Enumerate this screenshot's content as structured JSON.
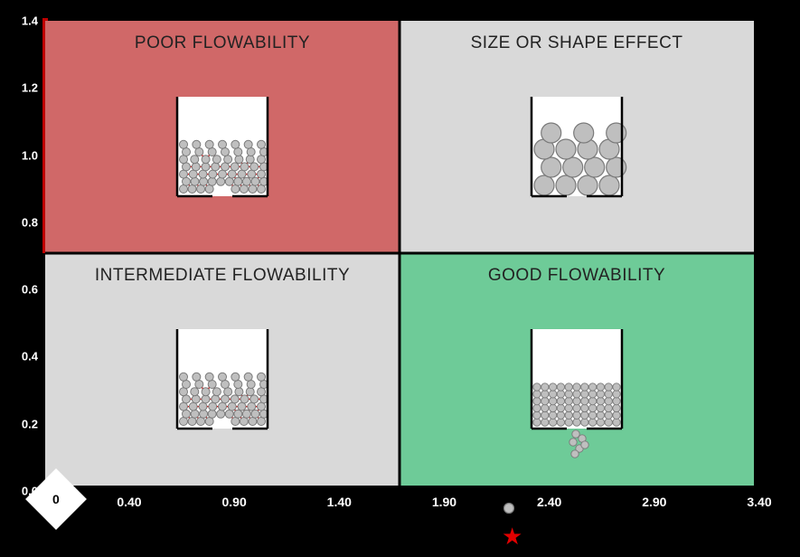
{
  "background_color": "#000000",
  "plot": {
    "border_color": "#000000",
    "border_width": 3,
    "y_ticks": [
      "1.4",
      "1.2",
      "1.0",
      "0.8",
      "0.6",
      "0.4",
      "0.2",
      "0.0"
    ],
    "x_ticks": [
      "0.40",
      "0.90",
      "1.40",
      "1.90",
      "2.40",
      "2.90",
      "3.40"
    ],
    "xlim": [
      0.0,
      3.4
    ],
    "ylim": [
      0.0,
      1.4
    ],
    "tick_color": "#ffffff",
    "tick_fontsize": 13,
    "left_accent_color": "#c00000",
    "divider_color": "#000000"
  },
  "quadrants": {
    "tl": {
      "label": "POOR FLOWABILITY",
      "bg": "#d06868",
      "hopper": "cohesive_small"
    },
    "tr": {
      "label": "SIZE OR SHAPE EFFECT",
      "bg": "#d9d9d9",
      "hopper": "large_clog"
    },
    "bl": {
      "label": "INTERMEDIATE FLOWABILITY",
      "bg": "#d9d9d9",
      "hopper": "cohesive_small"
    },
    "br": {
      "label": "GOOD FLOWABILITY",
      "bg": "#6ecb98",
      "hopper": "free_flow"
    }
  },
  "label_fontsize": 19,
  "label_color": "#222222",
  "diamond": {
    "text": "0",
    "bg": "#ffffff",
    "text_color": "#000000"
  },
  "hopper": {
    "wall_color": "#000000",
    "wall_width": 2.5,
    "particle_fill": "#bfbfbf",
    "particle_stroke": "#7a7a7a",
    "bond_color": "#e20000"
  },
  "legend": {
    "star_color": "#e20000",
    "dot_fill": "#bfbfbf",
    "dot_stroke": "#7a7a7a"
  }
}
